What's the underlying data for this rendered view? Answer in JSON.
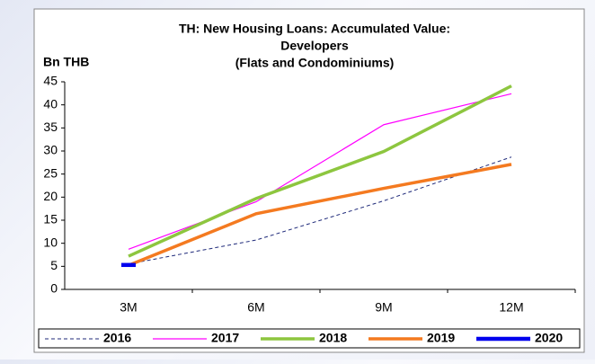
{
  "chart_data": {
    "type": "line",
    "title": [
      "TH: New Housing Loans: Accumulated Value:",
      "Developers",
      "(Flats and Condominiums)"
    ],
    "y_label": "Bn THB",
    "categories": [
      "3M",
      "6M",
      "9M",
      "12M"
    ],
    "series": [
      {
        "name": "2016",
        "color": "#1f2a7a",
        "linestyle": "dashed",
        "linewidth": 1,
        "values": [
          5.5,
          10.7,
          19.2,
          28.7
        ]
      },
      {
        "name": "2017",
        "color": "#ff00ff",
        "linestyle": "solid",
        "linewidth": 1.2,
        "values": [
          8.7,
          19,
          35.7,
          42.4
        ]
      },
      {
        "name": "2018",
        "color": "#8dc63f",
        "linestyle": "solid",
        "linewidth": 3.5,
        "values": [
          7.2,
          19.7,
          29.9,
          44.1
        ]
      },
      {
        "name": "2019",
        "color": "#f47a20",
        "linestyle": "solid",
        "linewidth": 3.5,
        "values": [
          5.2,
          16.4,
          21.9,
          27.1
        ]
      },
      {
        "name": "2020",
        "color": "#0000ee",
        "linestyle": "solid",
        "linewidth": 4.5,
        "values": [
          5.3,
          null,
          null,
          null
        ]
      }
    ],
    "ylim": [
      0,
      45
    ],
    "yticks": [
      0,
      5,
      10,
      15,
      20,
      25,
      30,
      35,
      40,
      45
    ],
    "legend": "bottom"
  }
}
